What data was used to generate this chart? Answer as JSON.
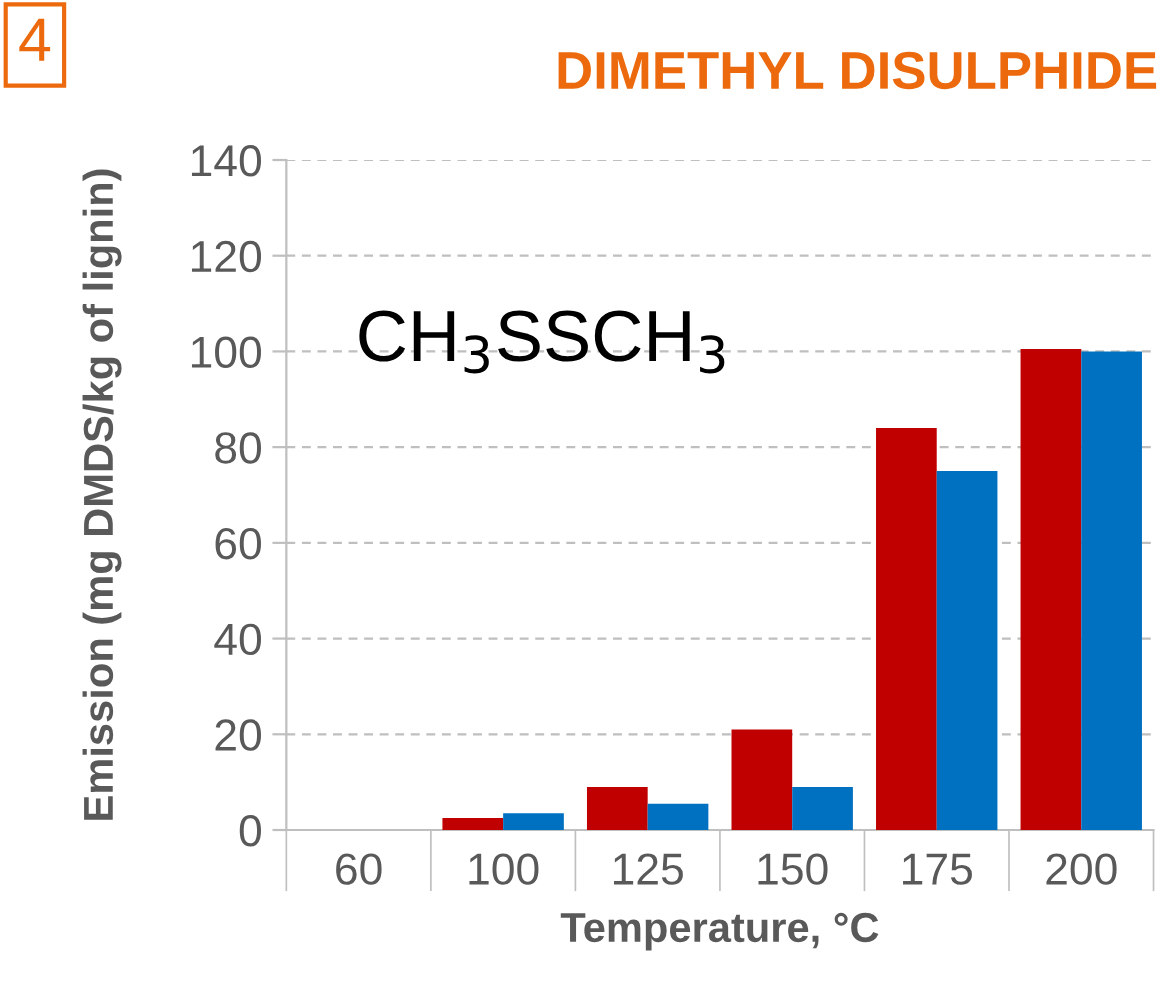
{
  "chart_data": {
    "type": "bar",
    "title": "DIMETHYL DISULPHIDE",
    "xlabel": "Temperature, °C",
    "ylabel": "Emission (mg DMDS/kg of lignin)",
    "annotations": [
      "4",
      "CH$_{3}$SSCH$_{3}$"
    ],
    "categories": [
      "60",
      "100",
      "125",
      "150",
      "175",
      "200"
    ],
    "series": [
      {
        "color": "#c00000",
        "values": [
          0,
          2.5,
          9,
          21,
          84,
          100.5
        ]
      },
      {
        "color": "#0070c0",
        "values": [
          0,
          3.5,
          5.5,
          9,
          75,
          100
        ]
      }
    ],
    "ylim": [
      0,
      140
    ],
    "yticks": [
      0,
      20,
      40,
      60,
      80,
      100,
      120,
      140
    ],
    "grid": "y",
    "legend": false
  }
}
